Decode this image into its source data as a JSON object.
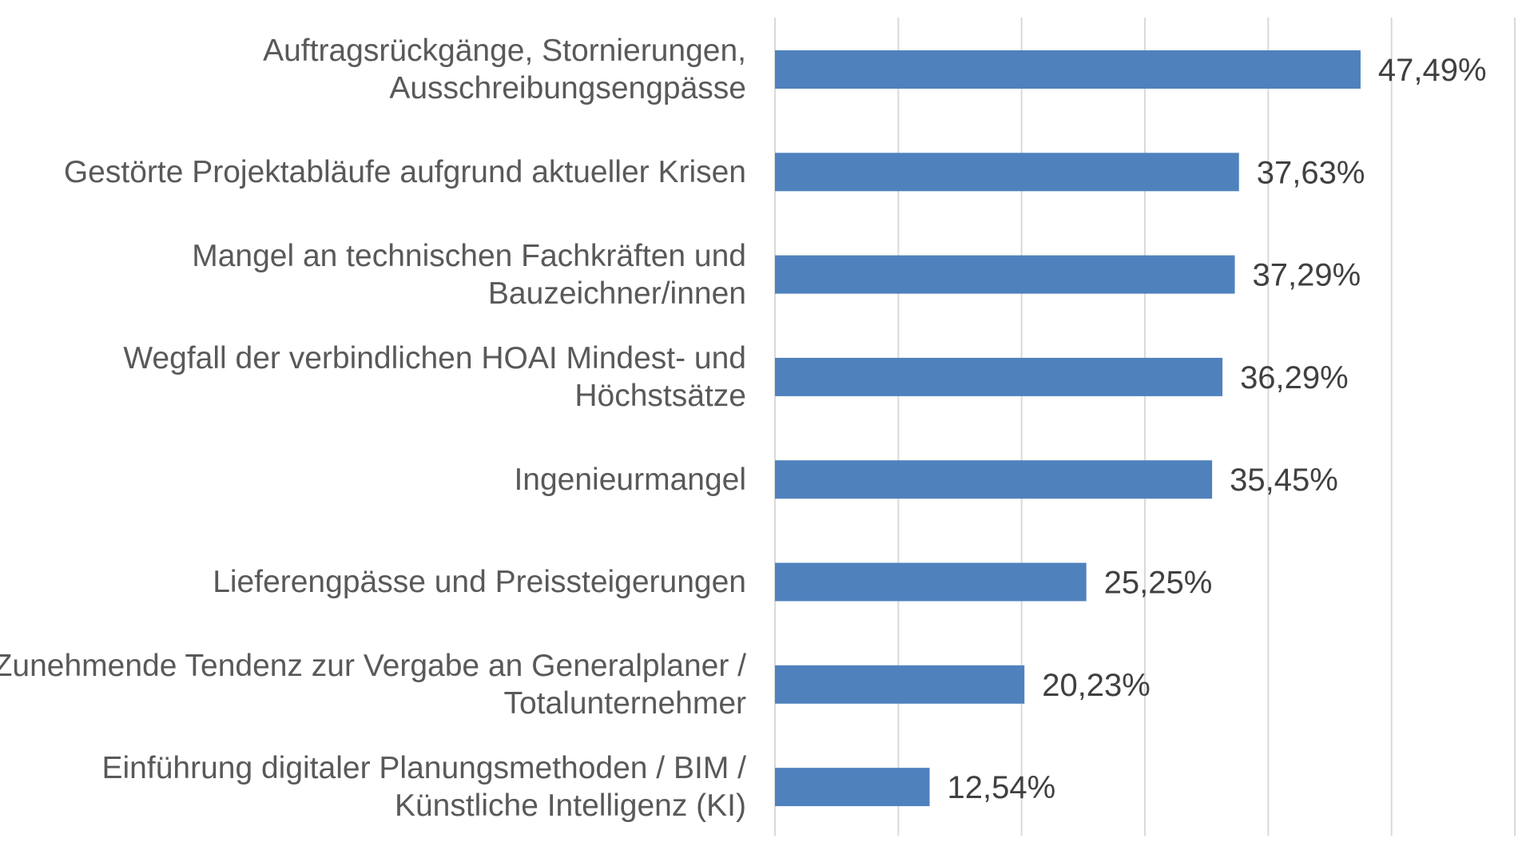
{
  "chart_data": {
    "type": "bar",
    "orientation": "horizontal",
    "categories": [
      "Auftragsrückgänge, Stornierungen, Ausschreibungsengpässe",
      "Gestörte Projektabläufe aufgrund aktueller Krisen",
      "Mangel an technischen Fachkräften und Bauzeichner/innen",
      "Wegfall der verbindlichen HOAI Mindest- und Höchstsätze",
      "Ingenieurmangel",
      "Lieferengpässe und Preissteigerungen",
      "Zunehmende Tendenz zur Vergabe an Generalplaner / Totalunternehmer",
      "Einführung digitaler Planungsmethoden / BIM / Künstliche Intelligenz (KI)"
    ],
    "values": [
      47.49,
      37.63,
      37.29,
      36.29,
      35.45,
      25.25,
      20.23,
      12.54
    ],
    "data_labels": [
      "47,49%",
      "37,63%",
      "37,29%",
      "36,29%",
      "35,45%",
      "25,25%",
      "20,23%",
      "12,54%"
    ],
    "title": "",
    "xlabel": "",
    "ylabel": "",
    "xlim": [
      0,
      60
    ],
    "grid": true,
    "legend": "none",
    "bar_color": "#4F81BD",
    "grid_color": "#D9D9D9",
    "label_color": "#595959",
    "value_label_color": "#404040"
  }
}
